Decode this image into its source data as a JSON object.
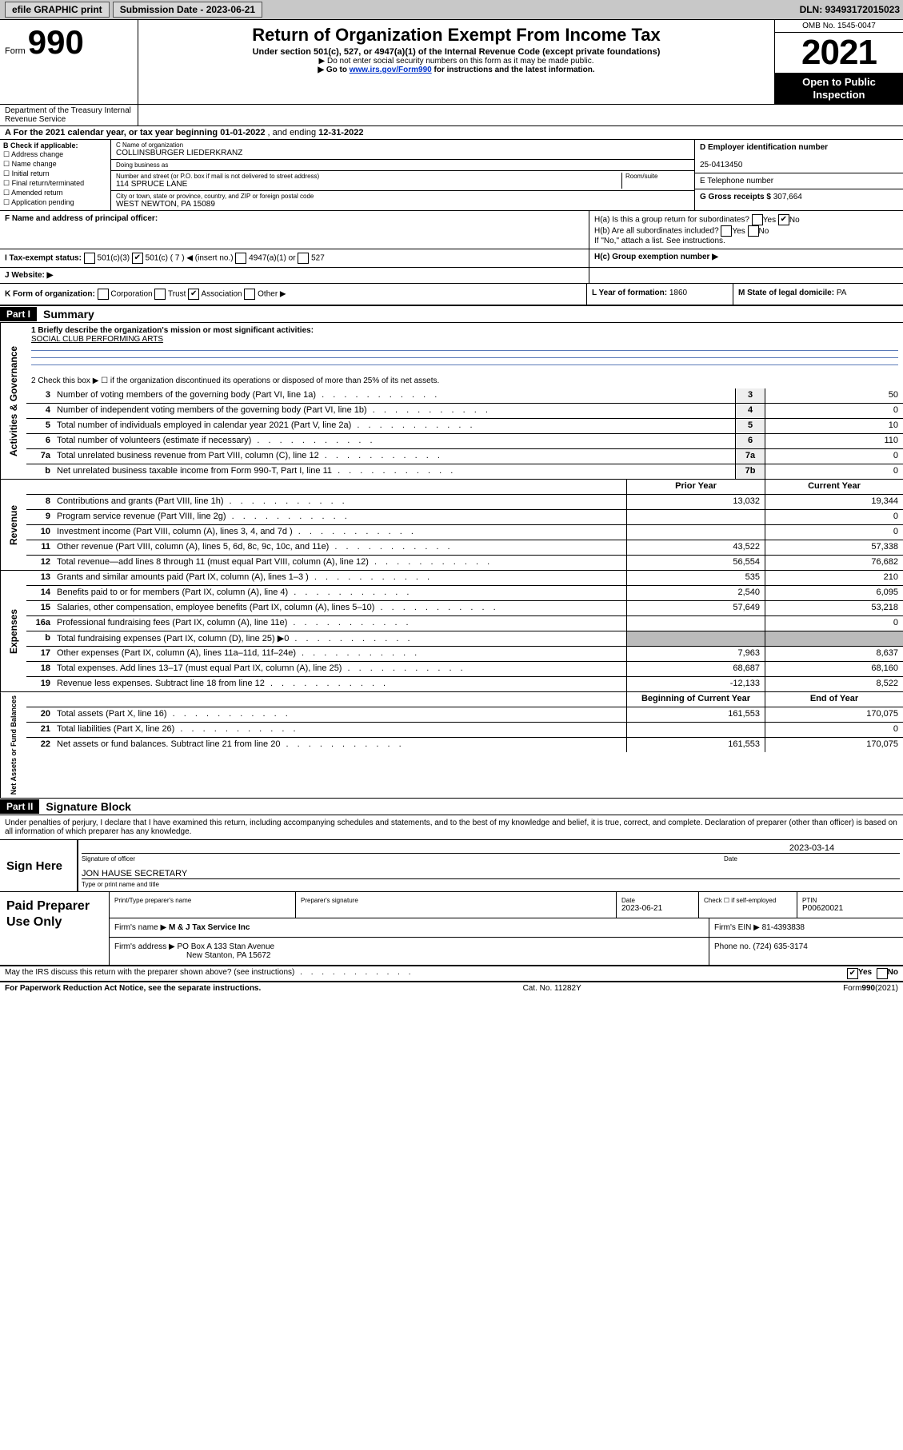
{
  "colors": {
    "topbar_bg": "#c8c8c8",
    "black": "#000000",
    "white": "#ffffff",
    "shade": "#bbbbbb",
    "link": "#0033cc",
    "rule": "#5a7ab8"
  },
  "topbar": {
    "efile": "efile GRAPHIC print",
    "submission": "Submission Date - 2023-06-21",
    "dln": "DLN: 93493172015023"
  },
  "header": {
    "form_prefix": "Form",
    "form_num": "990",
    "title": "Return of Organization Exempt From Income Tax",
    "sub1": "Under section 501(c), 527, or 4947(a)(1) of the Internal Revenue Code (except private foundations)",
    "sub2": "▶ Do not enter social security numbers on this form as it may be made public.",
    "sub3_pre": "▶ Go to ",
    "sub3_link": "www.irs.gov/Form990",
    "sub3_post": " for instructions and the latest information.",
    "omb": "OMB No. 1545-0047",
    "year": "2021",
    "open_public": "Open to Public Inspection",
    "dept": "Department of the Treasury Internal Revenue Service"
  },
  "lineA": {
    "label": "A For the 2021 calendar year, or tax year beginning ",
    "begin": "01-01-2022",
    "mid": " , and ending ",
    "end": "12-31-2022"
  },
  "B": {
    "label": "B Check if applicable:",
    "items": [
      "Address change",
      "Name change",
      "Initial return",
      "Final return/terminated",
      "Amended return",
      "Application pending"
    ]
  },
  "C": {
    "name_label": "C Name of organization",
    "name": "COLLINSBURGER LIEDERKRANZ",
    "dba_label": "Doing business as",
    "dba": "",
    "street_label": "Number and street (or P.O. box if mail is not delivered to street address)",
    "room_label": "Room/suite",
    "street": "114 SPRUCE LANE",
    "city_label": "City or town, state or province, country, and ZIP or foreign postal code",
    "city": "WEST NEWTON, PA  15089"
  },
  "D": {
    "label": "D Employer identification number",
    "value": "25-0413450"
  },
  "E": {
    "label": "E Telephone number",
    "value": ""
  },
  "G": {
    "label": "G Gross receipts $",
    "value": "307,664"
  },
  "F": {
    "label": "F  Name and address of principal officer:",
    "value": ""
  },
  "H": {
    "a": "H(a)  Is this a group return for subordinates?",
    "b": "H(b)  Are all subordinates included?",
    "b_note": "If \"No,\" attach a list. See instructions.",
    "c": "H(c)  Group exemption number ▶",
    "yes": "Yes",
    "no": "No",
    "ha_answer": "No"
  },
  "I": {
    "label": "I  Tax-exempt status:",
    "opts": [
      "501(c)(3)",
      "501(c) ( 7 ) ◀ (insert no.)",
      "4947(a)(1) or",
      "527"
    ],
    "checked_index": 1
  },
  "J": {
    "label": "J  Website: ▶",
    "value": ""
  },
  "K": {
    "label": "K Form of organization:",
    "opts": [
      "Corporation",
      "Trust",
      "Association",
      "Other ▶"
    ],
    "checked_index": 2
  },
  "L": {
    "label": "L Year of formation:",
    "value": "1860"
  },
  "M": {
    "label": "M State of legal domicile:",
    "value": "PA"
  },
  "partI": {
    "tab": "Part I",
    "title": "Summary"
  },
  "summary": {
    "q1_label": "1  Briefly describe the organization's mission or most significant activities:",
    "q1_value": "SOCIAL CLUB PERFORMING ARTS",
    "q2": "2  Check this box ▶ ☐  if the organization discontinued its operations or disposed of more than 25% of its net assets."
  },
  "gov_rows": [
    {
      "n": "3",
      "desc": "Number of voting members of the governing body (Part VI, line 1a)",
      "box": "3",
      "val": "50"
    },
    {
      "n": "4",
      "desc": "Number of independent voting members of the governing body (Part VI, line 1b)",
      "box": "4",
      "val": "0"
    },
    {
      "n": "5",
      "desc": "Total number of individuals employed in calendar year 2021 (Part V, line 2a)",
      "box": "5",
      "val": "10"
    },
    {
      "n": "6",
      "desc": "Total number of volunteers (estimate if necessary)",
      "box": "6",
      "val": "110"
    },
    {
      "n": "7a",
      "desc": "Total unrelated business revenue from Part VIII, column (C), line 12",
      "box": "7a",
      "val": "0"
    },
    {
      "n": "b",
      "desc": "Net unrelated business taxable income from Form 990-T, Part I, line 11",
      "box": "7b",
      "val": "0"
    }
  ],
  "two_col_header": {
    "prior": "Prior Year",
    "current": "Current Year"
  },
  "revenue_rows": [
    {
      "n": "8",
      "desc": "Contributions and grants (Part VIII, line 1h)",
      "prior": "13,032",
      "curr": "19,344"
    },
    {
      "n": "9",
      "desc": "Program service revenue (Part VIII, line 2g)",
      "prior": "",
      "curr": "0"
    },
    {
      "n": "10",
      "desc": "Investment income (Part VIII, column (A), lines 3, 4, and 7d )",
      "prior": "",
      "curr": "0"
    },
    {
      "n": "11",
      "desc": "Other revenue (Part VIII, column (A), lines 5, 6d, 8c, 9c, 10c, and 11e)",
      "prior": "43,522",
      "curr": "57,338"
    },
    {
      "n": "12",
      "desc": "Total revenue—add lines 8 through 11 (must equal Part VIII, column (A), line 12)",
      "prior": "56,554",
      "curr": "76,682"
    }
  ],
  "expense_rows": [
    {
      "n": "13",
      "desc": "Grants and similar amounts paid (Part IX, column (A), lines 1–3 )",
      "prior": "535",
      "curr": "210"
    },
    {
      "n": "14",
      "desc": "Benefits paid to or for members (Part IX, column (A), line 4)",
      "prior": "2,540",
      "curr": "6,095"
    },
    {
      "n": "15",
      "desc": "Salaries, other compensation, employee benefits (Part IX, column (A), lines 5–10)",
      "prior": "57,649",
      "curr": "53,218"
    },
    {
      "n": "16a",
      "desc": "Professional fundraising fees (Part IX, column (A), line 11e)",
      "prior": "",
      "curr": "0"
    },
    {
      "n": "b",
      "desc": "Total fundraising expenses (Part IX, column (D), line 25) ▶0",
      "prior": "__shade__",
      "curr": "__shade__"
    },
    {
      "n": "17",
      "desc": "Other expenses (Part IX, column (A), lines 11a–11d, 11f–24e)",
      "prior": "7,963",
      "curr": "8,637"
    },
    {
      "n": "18",
      "desc": "Total expenses. Add lines 13–17 (must equal Part IX, column (A), line 25)",
      "prior": "68,687",
      "curr": "68,160"
    },
    {
      "n": "19",
      "desc": "Revenue less expenses. Subtract line 18 from line 12",
      "prior": "-12,133",
      "curr": "8,522"
    }
  ],
  "net_header": {
    "begin": "Beginning of Current Year",
    "end": "End of Year"
  },
  "net_rows": [
    {
      "n": "20",
      "desc": "Total assets (Part X, line 16)",
      "prior": "161,553",
      "curr": "170,075"
    },
    {
      "n": "21",
      "desc": "Total liabilities (Part X, line 26)",
      "prior": "",
      "curr": "0"
    },
    {
      "n": "22",
      "desc": "Net assets or fund balances. Subtract line 21 from line 20",
      "prior": "161,553",
      "curr": "170,075"
    }
  ],
  "side_labels": {
    "gov": "Activities & Governance",
    "rev": "Revenue",
    "exp": "Expenses",
    "net": "Net Assets or Fund Balances"
  },
  "partII": {
    "tab": "Part II",
    "title": "Signature Block"
  },
  "penalty": "Under penalties of perjury, I declare that I have examined this return, including accompanying schedules and statements, and to the best of my knowledge and belief, it is true, correct, and complete. Declaration of preparer (other than officer) is based on all information of which preparer has any knowledge.",
  "sign": {
    "here": "Sign Here",
    "sig_officer": "Signature of officer",
    "date": "Date",
    "date_val": "2023-03-14",
    "name_title": "JON HAUSE  SECRETARY",
    "name_label": "Type or print name and title"
  },
  "preparer": {
    "here": "Paid Preparer Use Only",
    "h_name": "Print/Type preparer's name",
    "h_sig": "Preparer's signature",
    "h_date": "Date",
    "date_val": "2023-06-21",
    "check_label": "Check ☐ if self-employed",
    "ptin_label": "PTIN",
    "ptin": "P00620021",
    "firm_name_label": "Firm's name    ▶",
    "firm_name": "M & J Tax Service Inc",
    "firm_ein_label": "Firm's EIN ▶",
    "firm_ein": "81-4393838",
    "firm_addr_label": "Firm's address ▶",
    "firm_addr1": "PO Box A 133 Stan Avenue",
    "firm_addr2": "New Stanton, PA  15672",
    "phone_label": "Phone no.",
    "phone": "(724) 635-3174"
  },
  "may_irs": {
    "q": "May the IRS discuss this return with the preparer shown above? (see instructions)",
    "yes": "Yes",
    "no": "No",
    "answer": "Yes"
  },
  "footer": {
    "left": "For Paperwork Reduction Act Notice, see the separate instructions.",
    "mid": "Cat. No. 11282Y",
    "right_pre": "Form ",
    "right_bold": "990",
    "right_post": " (2021)"
  }
}
